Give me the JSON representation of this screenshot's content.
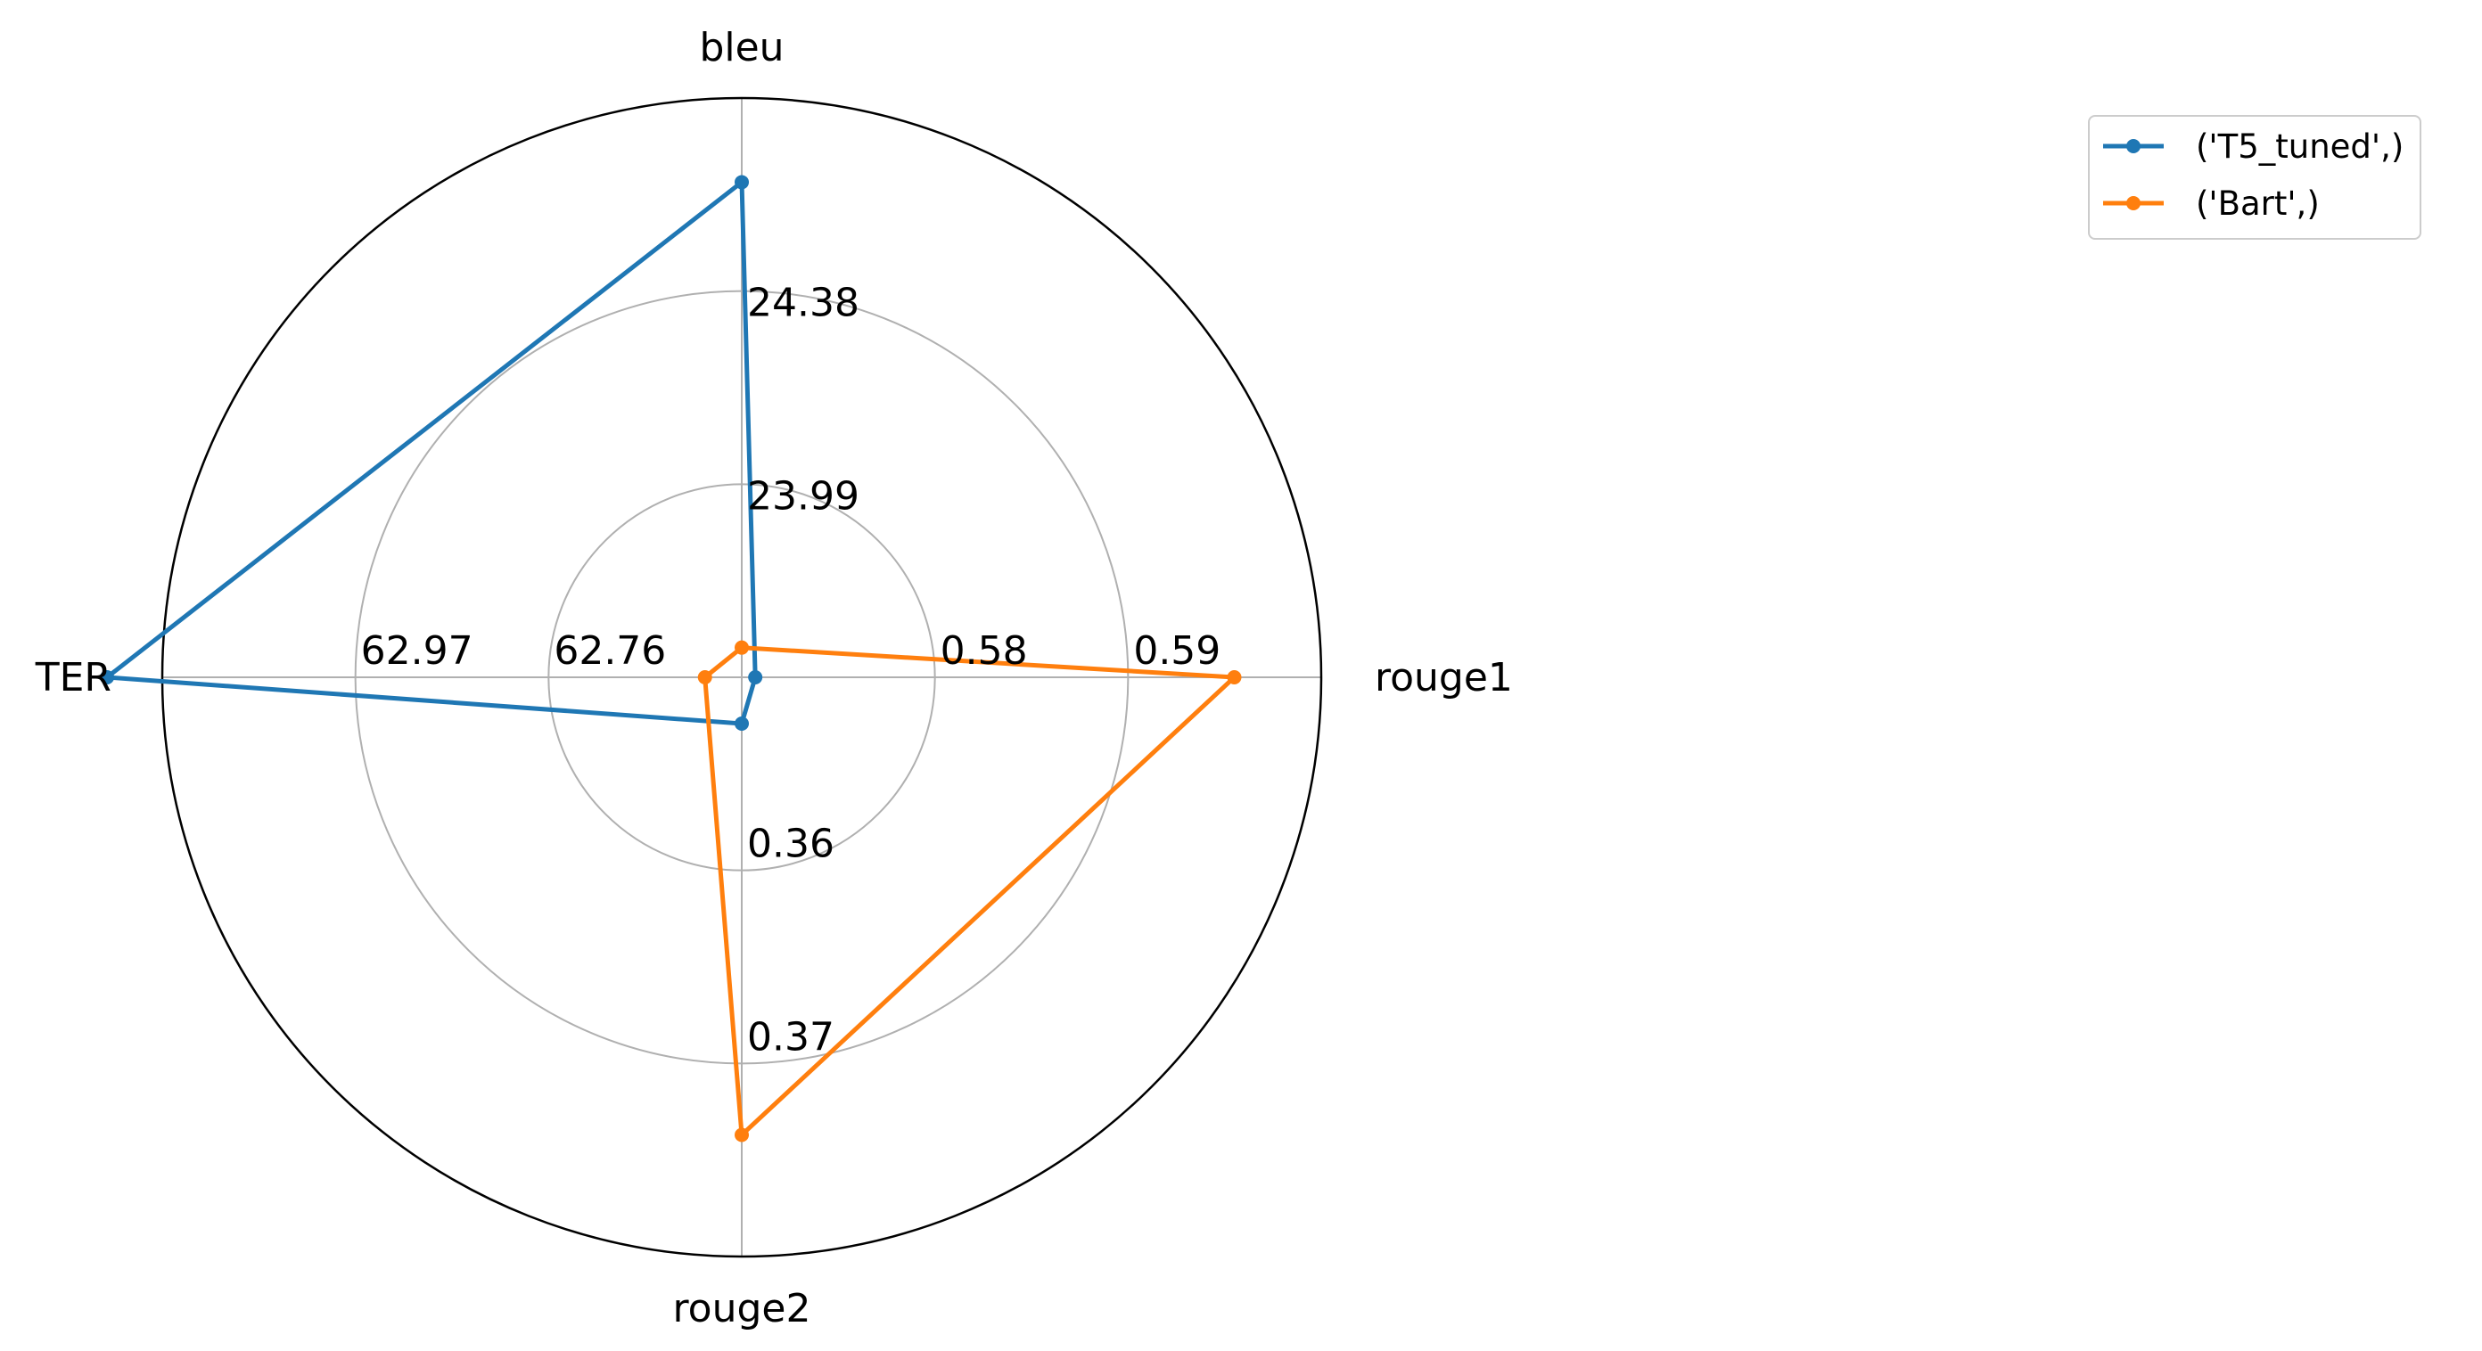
{
  "chart_data": {
    "type": "radar",
    "axes": [
      {
        "label": "bleu",
        "ticks": [
          "23.99",
          "24.38"
        ]
      },
      {
        "label": "rouge1",
        "ticks": [
          "0.58",
          "0.59"
        ]
      },
      {
        "label": "rouge2",
        "ticks": [
          "0.36",
          "0.37"
        ]
      },
      {
        "label": "TER",
        "ticks": [
          "62.76",
          "62.97"
        ]
      }
    ],
    "series": [
      {
        "name": "('T5_tuned',)",
        "color": "#1f77b4",
        "values": {
          "bleu": 24.6,
          "rouge1": 0.5707,
          "rouge2": 0.3524,
          "TER": 63.24
        }
      },
      {
        "name": "('Bart',)",
        "color": "#ff7f0e",
        "values": {
          "bleu": 23.66,
          "rouge1": 0.5955,
          "rouge2": 0.3737,
          "TER": 62.59
        }
      }
    ],
    "legend_position": "upper-right outside",
    "grid": true
  }
}
